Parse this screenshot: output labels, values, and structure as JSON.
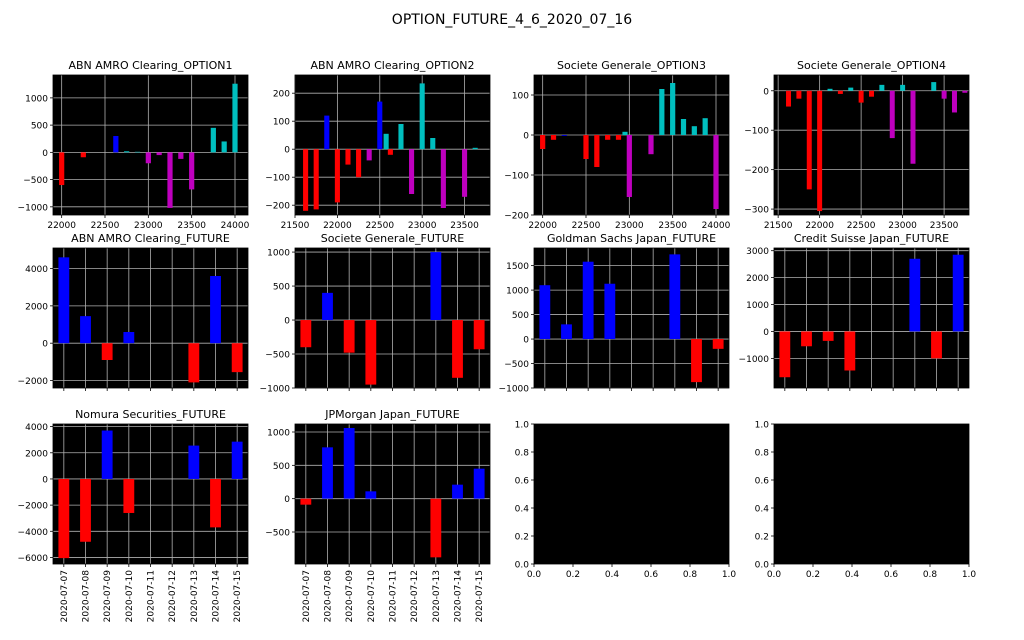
{
  "suptitle": "OPTION_FUTURE_4_6_2020_07_16",
  "colors": {
    "blue": "#0000ff",
    "red": "#ff0000",
    "cyan": "#00bfbf",
    "magenta": "#bf00bf",
    "background": "#000000",
    "grid": "#b0b0b0"
  },
  "date_ticks": [
    "2020-07-07",
    "2020-07-08",
    "2020-07-09",
    "2020-07-10",
    "2020-07-11",
    "2020-07-12",
    "2020-07-13",
    "2020-07-14",
    "2020-07-15"
  ],
  "chart_data": [
    {
      "type": "bar",
      "title": "ABN AMRO Clearing_OPTION1",
      "grid": true,
      "xlim": [
        21900,
        24150
      ],
      "ylim": [
        -1150,
        1420
      ],
      "xticks": [
        22000,
        22500,
        23000,
        23500,
        24000
      ],
      "yticks": [
        -1000,
        -500,
        0,
        500,
        1000
      ],
      "bars": [
        {
          "x": 22000,
          "y": -600,
          "color": "red"
        },
        {
          "x": 22250,
          "y": -90,
          "color": "red"
        },
        {
          "x": 22625,
          "y": 300,
          "color": "blue"
        },
        {
          "x": 22750,
          "y": 20,
          "color": "cyan"
        },
        {
          "x": 22875,
          "y": 10,
          "color": "cyan"
        },
        {
          "x": 23000,
          "y": -200,
          "color": "magenta"
        },
        {
          "x": 23125,
          "y": -50,
          "color": "magenta"
        },
        {
          "x": 23250,
          "y": -1020,
          "color": "magenta"
        },
        {
          "x": 23375,
          "y": -120,
          "color": "magenta"
        },
        {
          "x": 23500,
          "y": -680,
          "color": "magenta"
        },
        {
          "x": 23750,
          "y": 450,
          "color": "cyan"
        },
        {
          "x": 23875,
          "y": 200,
          "color": "cyan"
        },
        {
          "x": 24000,
          "y": 1260,
          "color": "cyan"
        }
      ]
    },
    {
      "type": "bar",
      "title": "ABN AMRO Clearing_OPTION2",
      "grid": true,
      "xlim": [
        21500,
        23800
      ],
      "ylim": [
        -235,
        265
      ],
      "xticks": [
        21500,
        22000,
        22500,
        23000,
        23500
      ],
      "yticks": [
        -200,
        -100,
        0,
        100,
        200
      ],
      "bars": [
        {
          "x": 21625,
          "y": -220,
          "color": "red"
        },
        {
          "x": 21750,
          "y": -215,
          "color": "red"
        },
        {
          "x": 21875,
          "y": 120,
          "color": "blue"
        },
        {
          "x": 22000,
          "y": -190,
          "color": "red"
        },
        {
          "x": 22125,
          "y": -55,
          "color": "red"
        },
        {
          "x": 22250,
          "y": -100,
          "color": "red"
        },
        {
          "x": 22375,
          "y": -40,
          "color": "magenta"
        },
        {
          "x": 22500,
          "y": 170,
          "color": "blue"
        },
        {
          "x": 22575,
          "y": 55,
          "color": "cyan"
        },
        {
          "x": 22625,
          "y": -20,
          "color": "red"
        },
        {
          "x": 22750,
          "y": 90,
          "color": "cyan"
        },
        {
          "x": 22875,
          "y": -160,
          "color": "magenta"
        },
        {
          "x": 23000,
          "y": 235,
          "color": "cyan"
        },
        {
          "x": 23125,
          "y": 40,
          "color": "cyan"
        },
        {
          "x": 23250,
          "y": -210,
          "color": "magenta"
        },
        {
          "x": 23500,
          "y": -170,
          "color": "magenta"
        },
        {
          "x": 23625,
          "y": 5,
          "color": "cyan"
        }
      ]
    },
    {
      "type": "bar",
      "title": "Societe Generale_OPTION3",
      "grid": true,
      "xlim": [
        21900,
        24150
      ],
      "ylim": [
        -200,
        150
      ],
      "xticks": [
        22000,
        22500,
        23000,
        23500,
        24000
      ],
      "yticks": [
        -200,
        -100,
        0,
        100
      ],
      "bars": [
        {
          "x": 22000,
          "y": -35,
          "color": "red"
        },
        {
          "x": 22125,
          "y": -12,
          "color": "red"
        },
        {
          "x": 22250,
          "y": -2,
          "color": "blue"
        },
        {
          "x": 22500,
          "y": -60,
          "color": "red"
        },
        {
          "x": 22625,
          "y": -80,
          "color": "red"
        },
        {
          "x": 22750,
          "y": -12,
          "color": "red"
        },
        {
          "x": 22875,
          "y": -12,
          "color": "red"
        },
        {
          "x": 22950,
          "y": 8,
          "color": "cyan"
        },
        {
          "x": 23000,
          "y": -155,
          "color": "magenta"
        },
        {
          "x": 23250,
          "y": -48,
          "color": "magenta"
        },
        {
          "x": 23375,
          "y": 115,
          "color": "cyan"
        },
        {
          "x": 23500,
          "y": 130,
          "color": "cyan"
        },
        {
          "x": 23625,
          "y": 40,
          "color": "cyan"
        },
        {
          "x": 23750,
          "y": 22,
          "color": "cyan"
        },
        {
          "x": 23875,
          "y": 42,
          "color": "cyan"
        },
        {
          "x": 24000,
          "y": -185,
          "color": "magenta"
        }
      ]
    },
    {
      "type": "bar",
      "title": "Societe Generale_OPTION4",
      "grid": true,
      "xlim": [
        21450,
        23800
      ],
      "ylim": [
        -315,
        40
      ],
      "xticks": [
        21500,
        22000,
        22500,
        23000,
        23500
      ],
      "yticks": [
        -300,
        -200,
        -100,
        0
      ],
      "bars": [
        {
          "x": 21625,
          "y": -40,
          "color": "red"
        },
        {
          "x": 21750,
          "y": -20,
          "color": "red"
        },
        {
          "x": 21875,
          "y": -250,
          "color": "red"
        },
        {
          "x": 22000,
          "y": -305,
          "color": "red"
        },
        {
          "x": 22125,
          "y": 5,
          "color": "cyan"
        },
        {
          "x": 22250,
          "y": -8,
          "color": "red"
        },
        {
          "x": 22375,
          "y": 8,
          "color": "cyan"
        },
        {
          "x": 22500,
          "y": -30,
          "color": "red"
        },
        {
          "x": 22625,
          "y": -15,
          "color": "red"
        },
        {
          "x": 22750,
          "y": 15,
          "color": "cyan"
        },
        {
          "x": 22875,
          "y": -120,
          "color": "magenta"
        },
        {
          "x": 23000,
          "y": 15,
          "color": "cyan"
        },
        {
          "x": 23125,
          "y": -185,
          "color": "magenta"
        },
        {
          "x": 23375,
          "y": 22,
          "color": "cyan"
        },
        {
          "x": 23500,
          "y": -20,
          "color": "magenta"
        },
        {
          "x": 23625,
          "y": -55,
          "color": "magenta"
        },
        {
          "x": 23750,
          "y": -5,
          "color": "magenta"
        }
      ]
    },
    {
      "type": "bar",
      "title": "ABN AMRO Clearing_FUTURE",
      "grid": true,
      "xlim": [
        -0.5,
        8.5
      ],
      "ylim": [
        -2400,
        5100
      ],
      "yticks": [
        -2000,
        0,
        2000,
        4000
      ],
      "date_axis": true,
      "show_date_labels": false,
      "values": [
        4600,
        1450,
        -900,
        600,
        0,
        0,
        -2100,
        3600,
        -1550
      ]
    },
    {
      "type": "bar",
      "title": "Societe Generale_FUTURE",
      "grid": true,
      "xlim": [
        -0.5,
        8.5
      ],
      "ylim": [
        -1000,
        1060
      ],
      "yticks": [
        -1000,
        -500,
        0,
        500,
        1000
      ],
      "date_axis": true,
      "show_date_labels": false,
      "values": [
        -400,
        400,
        -480,
        -950,
        0,
        0,
        1000,
        -850,
        -430
      ]
    },
    {
      "type": "bar",
      "title": "Goldman Sachs Japan_FUTURE",
      "grid": true,
      "xlim": [
        -0.5,
        8.5
      ],
      "ylim": [
        -1000,
        1860
      ],
      "yticks": [
        -1000,
        -500,
        0,
        500,
        1000,
        1500
      ],
      "date_axis": true,
      "show_date_labels": false,
      "values": [
        1100,
        300,
        1580,
        1130,
        0,
        0,
        1730,
        -880,
        -200
      ]
    },
    {
      "type": "bar",
      "title": "Credit Suisse Japan_FUTURE",
      "grid": true,
      "xlim": [
        -0.5,
        8.5
      ],
      "ylim": [
        -2100,
        3100
      ],
      "yticks": [
        -1000,
        0,
        1000,
        2000,
        3000
      ],
      "date_axis": true,
      "show_date_labels": false,
      "values": [
        -1700,
        -550,
        -350,
        -1450,
        0,
        0,
        2700,
        -1000,
        2850
      ]
    },
    {
      "type": "bar",
      "title": "Nomura Securities_FUTURE",
      "grid": true,
      "xlim": [
        -0.5,
        8.5
      ],
      "ylim": [
        -6500,
        4200
      ],
      "yticks": [
        -6000,
        -4000,
        -2000,
        0,
        2000,
        4000
      ],
      "date_axis": true,
      "show_date_labels": true,
      "values": [
        -6050,
        -4800,
        3700,
        -2600,
        0,
        0,
        2550,
        -3700,
        2850
      ]
    },
    {
      "type": "bar",
      "title": "JPMorgan Japan_FUTURE",
      "grid": true,
      "xlim": [
        -0.5,
        8.5
      ],
      "ylim": [
        -980,
        1120
      ],
      "yticks": [
        -500,
        0,
        500,
        1000
      ],
      "date_axis": true,
      "show_date_labels": true,
      "values": [
        -90,
        770,
        1060,
        110,
        0,
        0,
        -880,
        210,
        450
      ]
    },
    {
      "type": "empty",
      "title": "",
      "grid": false,
      "xlim": [
        0,
        1
      ],
      "ylim": [
        0,
        1
      ],
      "xticks": [
        0.0,
        0.2,
        0.4,
        0.6,
        0.8,
        1.0
      ],
      "yticks": [
        0.0,
        0.2,
        0.4,
        0.6,
        0.8,
        1.0
      ],
      "xtick_labels": [
        "0.0",
        "0.2",
        "0.4",
        "0.6",
        "0.8",
        "1.0"
      ],
      "ytick_labels": [
        "0.0",
        "0.2",
        "0.4",
        "0.6",
        "0.8",
        "1.0"
      ]
    },
    {
      "type": "empty",
      "title": "",
      "grid": false,
      "xlim": [
        0,
        1
      ],
      "ylim": [
        0,
        1
      ],
      "xticks": [
        0.0,
        0.2,
        0.4,
        0.6,
        0.8,
        1.0
      ],
      "yticks": [
        0.0,
        0.2,
        0.4,
        0.6,
        0.8,
        1.0
      ],
      "xtick_labels": [
        "0.0",
        "0.2",
        "0.4",
        "0.6",
        "0.8",
        "1.0"
      ],
      "ytick_labels": [
        "0.0",
        "0.2",
        "0.4",
        "0.6",
        "0.8",
        "1.0"
      ]
    }
  ]
}
